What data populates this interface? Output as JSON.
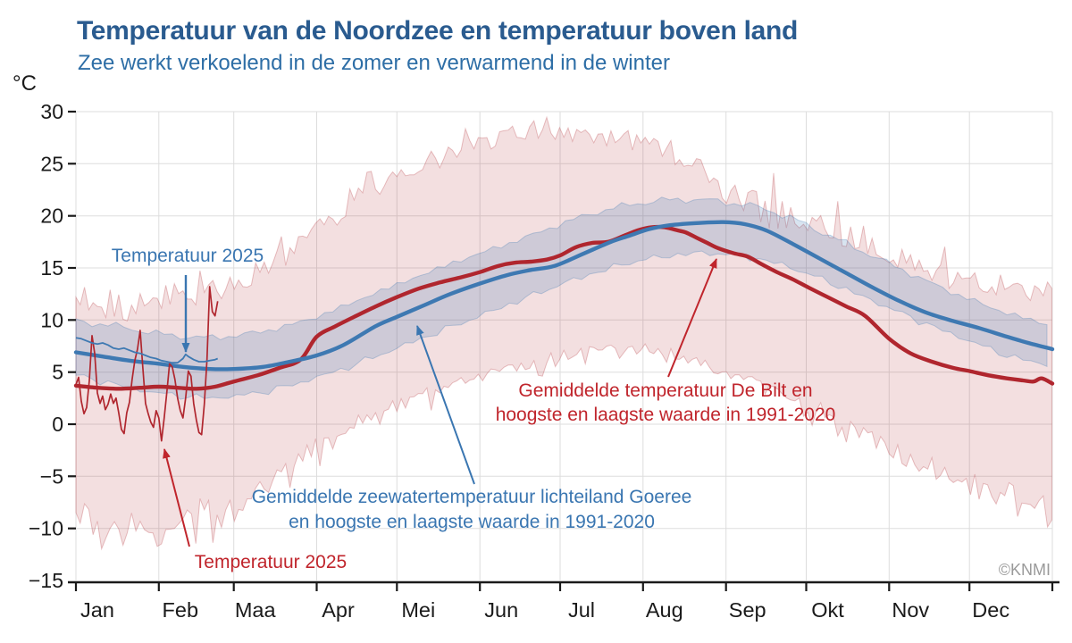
{
  "header": {
    "title": "Temperatuur van de Noordzee en temperatuur boven land",
    "subtitle": "Zee werkt verkoelend in de zomer en verwarmend in de winter"
  },
  "copyright": "©KNMI",
  "axes": {
    "y_unit": "°C",
    "y_ticks": [
      30,
      25,
      20,
      15,
      10,
      5,
      0,
      -5,
      -10,
      -15
    ],
    "x_tick_labels": [
      "Jan",
      "Feb",
      "Maa",
      "Apr",
      "Mei",
      "Jun",
      "Jul",
      "Aug",
      "Sep",
      "Okt",
      "Nov",
      "Dec"
    ],
    "month_start_days": [
      0,
      31,
      59,
      90,
      120,
      151,
      181,
      212,
      243,
      273,
      304,
      334
    ],
    "x_range_days": [
      0,
      365
    ],
    "y_range": [
      -15,
      30
    ],
    "grid": true
  },
  "annotations": {
    "sea_2025_label": "Temperatuur 2025",
    "land_2025_label": "Temperatuur 2025",
    "land_mean_label_line1": "Gemiddelde temperatuur De Bilt en",
    "land_mean_label_line2": "hoogste en laagste waarde in 1991-2020",
    "sea_mean_label_line1": "Gemiddelde zeewatertemperatuur lichteiland Goeree",
    "sea_mean_label_line2": "en hoogste en laagste waarde in 1991-2020"
  },
  "colors": {
    "title": "#2A5B8F",
    "subtitle": "#2E6EA6",
    "sea_line": "#3E79B2",
    "land_line": "#B0262E",
    "sea_text": "#3A76B1",
    "land_text": "#C0252C",
    "sea_band_fill_alpha": 0.2,
    "land_band_fill_alpha": 0.15,
    "grid": "#DDDDDD",
    "axis": "#1A1A1A",
    "tick_label": "#1A1A1A",
    "copyright": "#9A9A9A"
  },
  "chart_data": {
    "type": "line",
    "title": "Temperatuur van de Noordzee en temperatuur boven land",
    "subtitle": "Zee werkt verkoelend in de zomer en verwarmend in de winter",
    "x_unit": "day_of_year",
    "y_unit": "°C",
    "ylim": [
      -15,
      30
    ],
    "legend_position": "annotations-in-plot",
    "sea_mean": {
      "label": "Gemiddelde zeewatertemperatuur lichteiland Goeree 1991-2020",
      "points": [
        [
          0,
          6.9
        ],
        [
          10,
          6.5
        ],
        [
          20,
          6.1
        ],
        [
          31,
          5.8
        ],
        [
          40,
          5.5
        ],
        [
          50,
          5.3
        ],
        [
          59,
          5.3
        ],
        [
          70,
          5.5
        ],
        [
          80,
          6.0
        ],
        [
          90,
          6.6
        ],
        [
          100,
          7.6
        ],
        [
          112,
          9.4
        ],
        [
          120,
          10.3
        ],
        [
          130,
          11.4
        ],
        [
          140,
          12.5
        ],
        [
          151,
          13.5
        ],
        [
          161,
          14.3
        ],
        [
          170,
          14.8
        ],
        [
          179,
          15.2
        ],
        [
          190,
          16.4
        ],
        [
          200,
          17.5
        ],
        [
          207,
          18.1
        ],
        [
          214,
          18.7
        ],
        [
          222,
          19.1
        ],
        [
          232,
          19.3
        ],
        [
          242,
          19.4
        ],
        [
          250,
          19.2
        ],
        [
          258,
          18.6
        ],
        [
          268,
          17.3
        ],
        [
          278,
          15.9
        ],
        [
          288,
          14.5
        ],
        [
          298,
          13.1
        ],
        [
          308,
          11.8
        ],
        [
          318,
          10.7
        ],
        [
          328,
          9.9
        ],
        [
          338,
          9.2
        ],
        [
          348,
          8.4
        ],
        [
          356,
          7.8
        ],
        [
          365,
          7.2
        ]
      ]
    },
    "land_mean": {
      "label": "Gemiddelde temperatuur De Bilt 1991-2020",
      "points": [
        [
          0,
          3.7
        ],
        [
          8,
          3.5
        ],
        [
          16,
          3.4
        ],
        [
          24,
          3.5
        ],
        [
          31,
          3.6
        ],
        [
          38,
          3.5
        ],
        [
          45,
          3.4
        ],
        [
          52,
          3.6
        ],
        [
          59,
          4.1
        ],
        [
          68,
          4.7
        ],
        [
          76,
          5.4
        ],
        [
          84,
          6.2
        ],
        [
          90,
          8.4
        ],
        [
          97,
          9.4
        ],
        [
          104,
          10.3
        ],
        [
          112,
          11.3
        ],
        [
          120,
          12.2
        ],
        [
          128,
          13.0
        ],
        [
          136,
          13.6
        ],
        [
          144,
          14.1
        ],
        [
          151,
          14.6
        ],
        [
          158,
          15.2
        ],
        [
          164,
          15.5
        ],
        [
          170,
          15.6
        ],
        [
          176,
          15.8
        ],
        [
          181,
          16.2
        ],
        [
          187,
          17.0
        ],
        [
          193,
          17.4
        ],
        [
          199,
          17.5
        ],
        [
          205,
          18.1
        ],
        [
          210,
          18.6
        ],
        [
          215,
          18.9
        ],
        [
          220,
          18.9
        ],
        [
          225,
          18.6
        ],
        [
          228,
          18.4
        ],
        [
          232,
          17.9
        ],
        [
          236,
          17.4
        ],
        [
          240,
          16.9
        ],
        [
          246,
          16.4
        ],
        [
          251,
          16.1
        ],
        [
          256,
          15.4
        ],
        [
          262,
          14.6
        ],
        [
          268,
          13.9
        ],
        [
          274,
          13.1
        ],
        [
          281,
          12.2
        ],
        [
          288,
          11.3
        ],
        [
          295,
          10.4
        ],
        [
          304,
          8.2
        ],
        [
          312,
          6.8
        ],
        [
          320,
          6.0
        ],
        [
          328,
          5.4
        ],
        [
          334,
          5.1
        ],
        [
          341,
          4.7
        ],
        [
          348,
          4.4
        ],
        [
          354,
          4.2
        ],
        [
          358,
          4.1
        ],
        [
          361,
          4.4
        ],
        [
          365,
          3.9
        ]
      ]
    },
    "land_band": {
      "label": "Hoogste en laagste waarde De Bilt 1991-2020",
      "anchor_days": [
        0,
        10,
        20,
        30,
        40,
        50,
        60,
        70,
        80,
        90,
        100,
        110,
        120,
        130,
        140,
        150,
        160,
        170,
        180,
        190,
        200,
        210,
        220,
        230,
        240,
        250,
        260,
        270,
        280,
        290,
        300,
        310,
        320,
        330,
        340,
        350,
        360,
        365
      ],
      "upper": [
        11.0,
        10.5,
        11.0,
        11.5,
        12.0,
        13.0,
        13.5,
        15.0,
        16.5,
        18.5,
        20.5,
        22.5,
        24.0,
        25.0,
        26.0,
        27.0,
        27.5,
        28.0,
        28.2,
        27.8,
        27.4,
        27.0,
        26.4,
        25.2,
        23.0,
        21.0,
        20.0,
        19.5,
        19.0,
        18.0,
        17.0,
        15.5,
        14.5,
        13.8,
        13.2,
        12.6,
        12.2,
        13.0
      ],
      "lower": [
        -8.0,
        -10.5,
        -8.5,
        -11.0,
        -8.0,
        -8.0,
        -8.5,
        -6.0,
        -4.0,
        -2.0,
        -0.5,
        0.8,
        1.8,
        2.8,
        3.8,
        4.6,
        5.2,
        5.8,
        6.6,
        7.1,
        7.3,
        7.3,
        7.0,
        6.2,
        5.2,
        4.4,
        3.6,
        2.4,
        1.2,
        -0.2,
        -1.8,
        -3.2,
        -4.2,
        -5.2,
        -6.0,
        -6.6,
        -7.6,
        -8.6
      ],
      "jitter_upper_monthly": [
        1.8,
        1.8,
        1.6,
        1.6,
        1.6,
        1.4,
        1.3,
        1.6,
        3.2,
        2.6,
        1.8,
        1.6
      ],
      "jitter_lower_monthly": [
        2.2,
        2.2,
        1.8,
        1.4,
        1.2,
        1.0,
        0.9,
        0.9,
        1.2,
        1.5,
        1.8,
        2.0
      ]
    },
    "sea_band": {
      "label": "Hoogste en laagste zeewatertemperatuur lichteiland Goeree 1991-2020",
      "anchor_days": [
        0,
        10,
        20,
        30,
        40,
        50,
        60,
        70,
        80,
        90,
        100,
        110,
        120,
        130,
        140,
        150,
        160,
        170,
        180,
        190,
        200,
        210,
        220,
        230,
        240,
        250,
        260,
        270,
        280,
        290,
        300,
        310,
        320,
        330,
        340,
        350,
        360,
        365
      ],
      "upper": [
        9.9,
        9.6,
        9.2,
        8.7,
        8.4,
        8.3,
        8.5,
        8.9,
        9.5,
        10.3,
        11.3,
        12.4,
        13.4,
        14.4,
        15.4,
        16.3,
        17.2,
        18.1,
        19.1,
        20.0,
        20.7,
        21.2,
        21.5,
        21.6,
        21.4,
        21.1,
        20.5,
        19.5,
        18.3,
        17.1,
        15.9,
        14.7,
        13.5,
        12.4,
        11.4,
        10.5,
        9.8,
        9.5
      ],
      "lower": [
        4.7,
        4.1,
        3.5,
        3.0,
        2.7,
        2.5,
        2.7,
        3.1,
        3.7,
        4.5,
        5.3,
        6.3,
        7.3,
        8.3,
        9.3,
        10.3,
        11.3,
        12.3,
        13.3,
        14.2,
        15.0,
        15.7,
        16.1,
        16.4,
        16.4,
        16.1,
        15.6,
        14.8,
        13.8,
        12.7,
        11.6,
        10.5,
        9.4,
        8.4,
        7.4,
        6.4,
        5.9,
        5.6
      ]
    },
    "sea_2025": {
      "label": "Zeewatertemperatuur 2025",
      "points": [
        [
          0,
          8.3
        ],
        [
          2,
          8.2
        ],
        [
          4,
          8.0
        ],
        [
          6,
          7.8
        ],
        [
          8,
          7.7
        ],
        [
          10,
          7.8
        ],
        [
          12,
          7.6
        ],
        [
          14,
          7.3
        ],
        [
          16,
          7.2
        ],
        [
          18,
          7.3
        ],
        [
          20,
          7.1
        ],
        [
          22,
          6.9
        ],
        [
          24,
          6.8
        ],
        [
          26,
          6.6
        ],
        [
          28,
          6.4
        ],
        [
          30,
          6.3
        ],
        [
          32,
          6.1
        ],
        [
          34,
          6.0
        ],
        [
          36,
          5.9
        ],
        [
          38,
          5.9
        ],
        [
          40,
          6.3
        ],
        [
          41,
          6.7
        ],
        [
          42,
          6.5
        ],
        [
          44,
          6.2
        ],
        [
          46,
          6.0
        ],
        [
          48,
          6.0
        ],
        [
          50,
          6.1
        ],
        [
          52,
          6.2
        ],
        [
          53,
          6.3
        ]
      ]
    },
    "land_2025": {
      "label": "Temperatuur De Bilt 2025",
      "points": [
        [
          0,
          3.8
        ],
        [
          1,
          4.5
        ],
        [
          2,
          2.2
        ],
        [
          3,
          1.0
        ],
        [
          4,
          1.6
        ],
        [
          5,
          4.2
        ],
        [
          6,
          8.5
        ],
        [
          7,
          6.8
        ],
        [
          8,
          3.0
        ],
        [
          9,
          2.0
        ],
        [
          10,
          2.7
        ],
        [
          11,
          1.4
        ],
        [
          12,
          1.9
        ],
        [
          13,
          2.9
        ],
        [
          14,
          2.0
        ],
        [
          15,
          2.5
        ],
        [
          16,
          1.1
        ],
        [
          17,
          -0.5
        ],
        [
          18,
          -0.9
        ],
        [
          19,
          1.1
        ],
        [
          20,
          2.1
        ],
        [
          21,
          4.3
        ],
        [
          22,
          6.1
        ],
        [
          23,
          7.2
        ],
        [
          24,
          9.0
        ],
        [
          25,
          5.4
        ],
        [
          26,
          2.0
        ],
        [
          27,
          1.0
        ],
        [
          28,
          0.2
        ],
        [
          29,
          -0.3
        ],
        [
          30,
          1.3
        ],
        [
          31,
          0.6
        ],
        [
          32,
          -1.6
        ],
        [
          33,
          0.6
        ],
        [
          34,
          3.1
        ],
        [
          35,
          5.8
        ],
        [
          36,
          5.5
        ],
        [
          37,
          4.3
        ],
        [
          38,
          2.5
        ],
        [
          39,
          1.3
        ],
        [
          40,
          0.6
        ],
        [
          41,
          2.5
        ],
        [
          42,
          5.1
        ],
        [
          43,
          4.6
        ],
        [
          44,
          2.0
        ],
        [
          45,
          0.4
        ],
        [
          46,
          -0.8
        ],
        [
          47,
          -1.0
        ],
        [
          48,
          1.9
        ],
        [
          49,
          6.2
        ],
        [
          50,
          13.2
        ],
        [
          51,
          10.8
        ],
        [
          52,
          10.4
        ],
        [
          53,
          11.8
        ]
      ]
    }
  }
}
